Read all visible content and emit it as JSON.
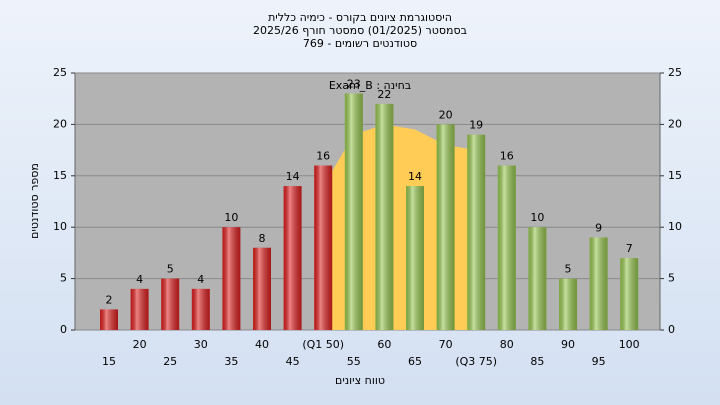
{
  "chart_data": {
    "type": "bar",
    "title": "היסטוגרמת ציונים בקורס - כימיה כללית",
    "subtitle": "בסמסטר (01/2025) סמסטר חורף 2025/26",
    "subtitle2": "סטודנטים רשומים - 769",
    "annotation": "בחינה : Exam_B",
    "x_label": "טווח ציונים",
    "y_label": "מספר סטודנטים",
    "categories": [
      "15",
      "20",
      "25",
      "30",
      "35",
      "40",
      "45",
      "(Q1 50)",
      "55",
      "60",
      "65",
      "70",
      "(Q3 75)",
      "80",
      "85",
      "90",
      "95",
      "100"
    ],
    "series": [
      {
        "values": [
          2,
          4,
          5,
          4,
          10,
          8,
          14,
          16,
          23,
          22,
          14,
          20,
          19,
          16,
          10,
          5,
          9,
          7
        ],
        "colors": [
          "#e02020",
          "#e02020",
          "#e02020",
          "#e02020",
          "#e02020",
          "#e02020",
          "#e02020",
          "#e02020",
          "#98c850",
          "#98c850",
          "#98c850",
          "#98c850",
          "#98c850",
          "#98c850",
          "#98c850",
          "#98c850",
          "#98c850",
          "#98c850"
        ]
      },
      {
        "type": "area",
        "color": "#ffcc55",
        "values": [
          null,
          null,
          null,
          null,
          null,
          null,
          null,
          14,
          19,
          20,
          19.5,
          18,
          17.5,
          null,
          null,
          null,
          null,
          null
        ]
      }
    ],
    "ylim": [
      0,
      25
    ],
    "yticks": [
      0,
      5,
      10,
      15,
      20,
      25
    ],
    "y2lim": [
      0,
      25
    ],
    "y2ticks": [
      0,
      5,
      10,
      15,
      20,
      25
    ],
    "grid": true
  }
}
